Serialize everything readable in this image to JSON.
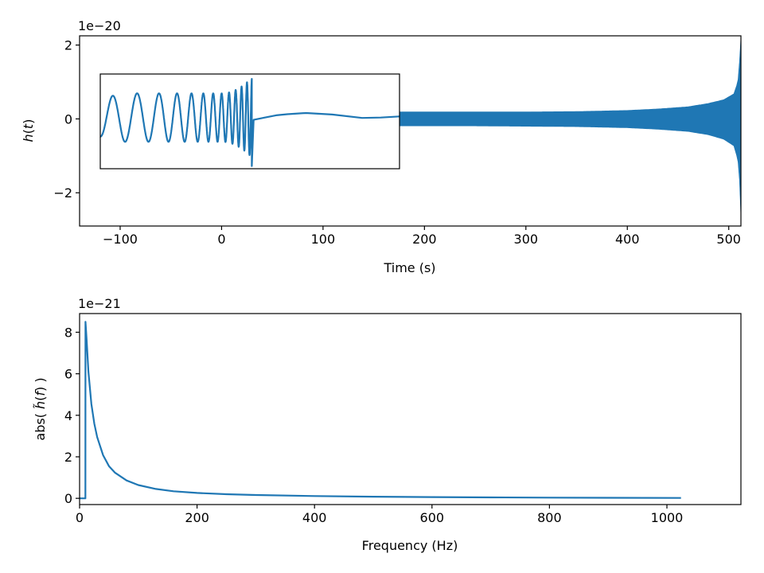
{
  "chart_data": [
    {
      "type": "line",
      "name": "time-domain",
      "xlabel": "Time (s)",
      "ylabel_main": "h",
      "ylabel_arg": "t",
      "offset_text": "1e−20",
      "xlim": [
        -140,
        512
      ],
      "ylim": [
        -2.9,
        2.25
      ],
      "xticks": [
        -100,
        0,
        100,
        200,
        300,
        400,
        500
      ],
      "xtick_labels": [
        "−100",
        "0",
        "100",
        "200",
        "300",
        "400",
        "500"
      ],
      "yticks": [
        -2,
        0,
        2
      ],
      "ytick_labels": [
        "−2",
        "0",
        "2"
      ],
      "signal": {
        "x_start": 175,
        "x_end": 512,
        "envelope_x": [
          175,
          250,
          300,
          350,
          400,
          430,
          460,
          480,
          495,
          505,
          509,
          511,
          512
        ],
        "envelope_upper": [
          0.19,
          0.19,
          0.19,
          0.2,
          0.23,
          0.27,
          0.33,
          0.42,
          0.52,
          0.68,
          1.0,
          1.7,
          2.2
        ],
        "envelope_lower": [
          -0.19,
          -0.19,
          -0.2,
          -0.21,
          -0.24,
          -0.28,
          -0.34,
          -0.43,
          -0.55,
          -0.73,
          -1.1,
          -1.8,
          -2.65
        ]
      },
      "inset": {
        "xlim": [
          -0.05,
          0.03
        ],
        "ylim": [
          -1.35,
          1.15
        ],
        "chirp": {
          "x_start": -0.05,
          "x_merger": -0.0095,
          "freq_start": 150,
          "freq_merger": 780,
          "amp_start": 0.5,
          "amp_plateau": 0.64,
          "amp_merger": 1.05,
          "spike_min": -1.28
        },
        "ringdown": {
          "x": [
            -0.009,
            -0.006,
            -0.003,
            0.0,
            0.005,
            0.012,
            0.02,
            0.025,
            0.03
          ],
          "y": [
            -0.06,
            0.0,
            0.06,
            0.09,
            0.12,
            0.08,
            -0.01,
            0.0,
            0.03
          ]
        }
      }
    },
    {
      "type": "line",
      "name": "frequency-domain",
      "xlabel": "Frequency (Hz)",
      "ylabel_pre": "abs( ",
      "ylabel_main": "h̃",
      "ylabel_arg": "f",
      "ylabel_post": " )",
      "offset_text": "1e−21",
      "xlim": [
        0,
        1126
      ],
      "ylim": [
        -0.3,
        8.9
      ],
      "xticks": [
        0,
        200,
        400,
        600,
        800,
        1000
      ],
      "xtick_labels": [
        "0",
        "200",
        "400",
        "600",
        "800",
        "1000"
      ],
      "yticks": [
        0,
        2,
        4,
        6,
        8
      ],
      "ytick_labels": [
        "0",
        "2",
        "4",
        "6",
        "8"
      ],
      "x": [
        0,
        9.9,
        10,
        11,
        12,
        15,
        20,
        25,
        30,
        40,
        50,
        60,
        80,
        100,
        130,
        160,
        200,
        250,
        300,
        400,
        500,
        600,
        700,
        800,
        900,
        1024
      ],
      "y": [
        0,
        0,
        8.5,
        8.1,
        7.6,
        6.1,
        4.55,
        3.6,
        2.95,
        2.08,
        1.55,
        1.24,
        0.86,
        0.64,
        0.45,
        0.34,
        0.26,
        0.2,
        0.16,
        0.11,
        0.08,
        0.06,
        0.045,
        0.035,
        0.025,
        0.02
      ]
    }
  ]
}
